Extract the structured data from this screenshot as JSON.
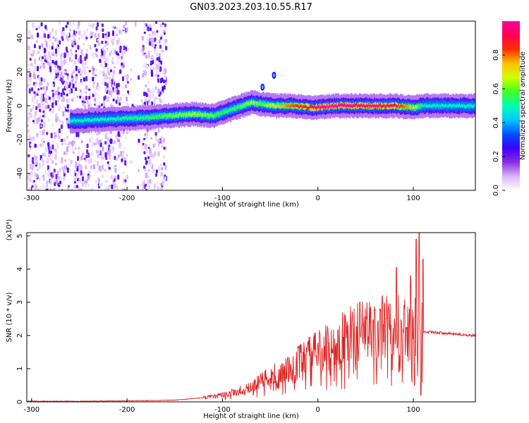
{
  "title": "GN03.2023.203.10.55.R17",
  "chart_data": [
    {
      "type": "heatmap",
      "title": "GN03.2023.203.10.55.R17",
      "xlabel": "Height of straight line (km)",
      "ylabel": "Frequency (Hz)",
      "xlim": [
        -305,
        165
      ],
      "ylim": [
        -50,
        50
      ],
      "x_ticks": [
        -300,
        -200,
        -100,
        0,
        100
      ],
      "y_ticks": [
        -40,
        -20,
        0,
        20,
        40
      ],
      "grid": false,
      "colorbar": {
        "label": "Normalized spectral amplitude",
        "range": [
          0,
          1
        ],
        "ticks": [
          0.0,
          0.2,
          0.4,
          0.6,
          0.8
        ],
        "colors": [
          "#ffffff",
          "#d9b3ff",
          "#8a2be2",
          "#3b00ff",
          "#0050ff",
          "#00c8ff",
          "#00ffb0",
          "#40ff20",
          "#d0ff00",
          "#ffc000",
          "#ff3000",
          "#ff0050",
          "#ff00a0"
        ]
      },
      "ridge": {
        "x": [
          -260,
          -220,
          -180,
          -160,
          -130,
          -110,
          -95,
          -80,
          -70,
          -60,
          -45,
          -30,
          -10,
          0,
          20,
          50,
          80,
          100,
          110,
          165
        ],
        "y": [
          -9,
          -8,
          -7,
          -6,
          -5,
          -6,
          -3,
          0,
          2,
          1,
          0,
          0,
          -1,
          -1,
          0,
          0,
          0,
          -1,
          0,
          0
        ],
        "peak_amplitude": [
          0.5,
          0.5,
          0.55,
          0.6,
          0.65,
          0.6,
          0.55,
          0.6,
          0.65,
          0.6,
          0.7,
          0.8,
          0.9,
          1.0,
          1.0,
          0.95,
          0.9,
          0.7,
          0.5,
          0.5
        ]
      },
      "noise_region_x": [
        -305,
        -160
      ],
      "isolated_features": [
        {
          "x": -46,
          "y": 18
        },
        {
          "x": -58,
          "y": 11
        }
      ]
    },
    {
      "type": "line",
      "xlabel": "Height of straight line (km)",
      "ylabel": "SNR (10 * v/v)",
      "y_multiplier": "(x10⁴)",
      "xlim": [
        -305,
        165
      ],
      "ylim": [
        0,
        5.1
      ],
      "x_ticks": [
        -300,
        -200,
        -100,
        0,
        100
      ],
      "y_ticks": [
        0,
        1,
        2,
        3,
        4,
        5
      ],
      "grid": false,
      "color": "#e02020",
      "envelope": {
        "x": [
          -305,
          -250,
          -200,
          -150,
          -130,
          -110,
          -100,
          -80,
          -60,
          -40,
          -20,
          0,
          20,
          40,
          60,
          80,
          95,
          100,
          105,
          110,
          120,
          140,
          165
        ],
        "y": [
          0.02,
          0.02,
          0.03,
          0.05,
          0.1,
          0.15,
          0.2,
          0.35,
          0.6,
          0.9,
          1.2,
          1.5,
          1.8,
          2.1,
          2.25,
          2.25,
          2.2,
          2.2,
          2.5,
          2.1,
          2.1,
          2.05,
          2.0
        ]
      },
      "spikes": [
        {
          "x": 55,
          "y": 2.85
        },
        {
          "x": 82,
          "y": 4.05
        },
        {
          "x": 97,
          "y": 3.8
        },
        {
          "x": 103,
          "y": 4.9
        },
        {
          "x": 106,
          "y": 5.1
        },
        {
          "x": 110,
          "y": 4.3
        },
        {
          "x": 101,
          "y": 0.5
        },
        {
          "x": 108,
          "y": 0.2
        },
        {
          "x": 85,
          "y": 0.9
        }
      ]
    }
  ]
}
